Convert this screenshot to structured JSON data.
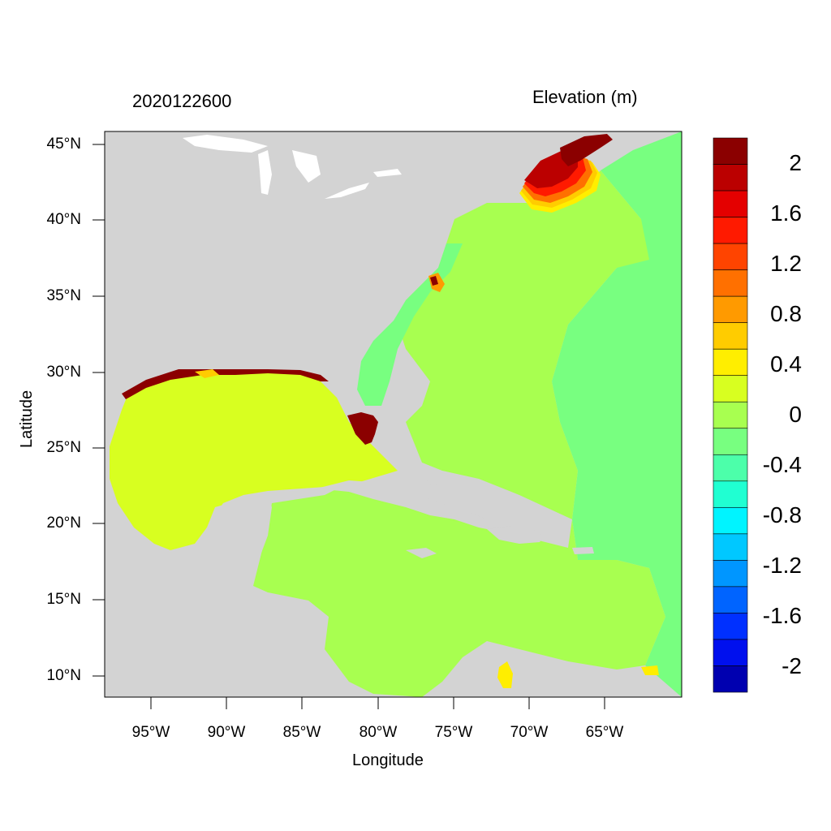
{
  "map": {
    "left_title": "2020122600",
    "right_title": "Elevation (m)",
    "x_axis_label": "Longitude",
    "y_axis_label": "Latitude",
    "lat_ticks": [
      "45°N",
      "40°N",
      "35°N",
      "30°N",
      "25°N",
      "20°N",
      "15°N",
      "10°N"
    ],
    "lon_ticks": [
      "95°W",
      "90°W",
      "85°W",
      "80°W",
      "75°W",
      "70°W",
      "65°W"
    ],
    "colorbar": {
      "labels": [
        "2",
        "1.6",
        "1.2",
        "0.8",
        "0.4",
        "0",
        "-0.4",
        "-0.8",
        "-1.2",
        "-1.6",
        "-2"
      ],
      "colors_top_to_bottom": [
        "#8b0000",
        "#bb0000",
        "#e40000",
        "#ff1a00",
        "#ff4400",
        "#ff7000",
        "#ff9a00",
        "#ffcc00",
        "#ffee00",
        "#d8ff20",
        "#a8ff50",
        "#78ff80",
        "#4cffaa",
        "#20ffd2",
        "#00f4ff",
        "#00c8ff",
        "#0096ff",
        "#0064ff",
        "#0030ff",
        "#0010ee",
        "#0000b0"
      ]
    },
    "colors": {
      "land": "#d3d3d3",
      "ocean_zero": "#a8ff50",
      "ocean_negative": "#78ff80",
      "gulf": "#d8ff20"
    }
  }
}
